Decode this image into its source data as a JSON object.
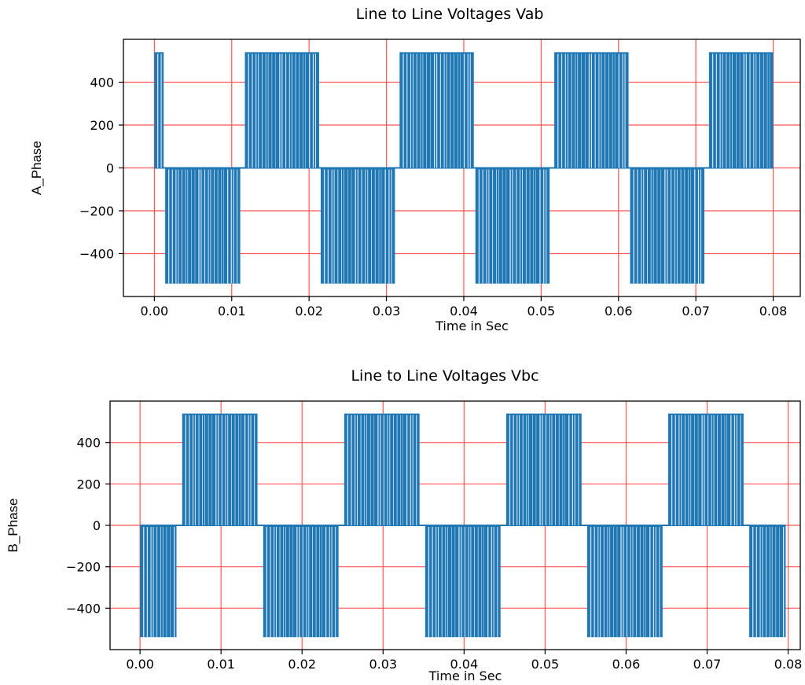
{
  "chart_data": [
    {
      "type": "line",
      "title": "Line to Line Voltages Vab",
      "xlabel": "Time in Sec",
      "ylabel": "A_Phase",
      "xlim": [
        -0.004,
        0.0835
      ],
      "ylim": [
        -600,
        600
      ],
      "xticks": [
        0.0,
        0.01,
        0.02,
        0.03,
        0.04,
        0.05,
        0.06,
        0.07,
        0.08
      ],
      "xtick_labels": [
        "0.00",
        "0.01",
        "0.02",
        "0.03",
        "0.04",
        "0.05",
        "0.06",
        "0.07",
        "0.08"
      ],
      "yticks": [
        -400,
        -200,
        0,
        200,
        400
      ],
      "ytick_labels": [
        "−400",
        "−200",
        "0",
        "200",
        "400"
      ],
      "grid": true,
      "grid_color": "#ff5555",
      "line_color": "#1f77b4",
      "series": [
        {
          "amplitude": 540,
          "pulses": [
            {
              "start": 0.0,
              "end": 0.0012,
              "level": 540
            },
            {
              "start": 0.0014,
              "end": 0.0111,
              "level": -540
            },
            {
              "start": 0.0117,
              "end": 0.0213,
              "level": 540
            },
            {
              "start": 0.0215,
              "end": 0.0311,
              "level": -540
            },
            {
              "start": 0.0317,
              "end": 0.0413,
              "level": 540
            },
            {
              "start": 0.0415,
              "end": 0.0511,
              "level": -540
            },
            {
              "start": 0.0517,
              "end": 0.0613,
              "level": 540
            },
            {
              "start": 0.0615,
              "end": 0.0711,
              "level": -540
            },
            {
              "start": 0.0717,
              "end": 0.08,
              "level": 540
            }
          ]
        }
      ]
    },
    {
      "type": "line",
      "title": "Line to Line Voltages Vbc",
      "xlabel": "Time in Sec",
      "ylabel": "B_Phase",
      "xlim": [
        -0.0037,
        0.0815
      ],
      "ylim": [
        -600,
        600
      ],
      "xticks": [
        0.0,
        0.01,
        0.02,
        0.03,
        0.04,
        0.05,
        0.06,
        0.07,
        0.08
      ],
      "xtick_labels": [
        "0.00",
        "0.01",
        "0.02",
        "0.03",
        "0.04",
        "0.05",
        "0.06",
        "0.07",
        "0.08"
      ],
      "yticks": [
        -400,
        -200,
        0,
        200,
        400
      ],
      "ytick_labels": [
        "−400",
        "−200",
        "0",
        "200",
        "400"
      ],
      "grid": true,
      "grid_color": "#ff5555",
      "line_color": "#1f77b4",
      "series": [
        {
          "amplitude": 540,
          "pulses": [
            {
              "start": 0.0,
              "end": 0.0045,
              "level": -540
            },
            {
              "start": 0.0052,
              "end": 0.0145,
              "level": 540
            },
            {
              "start": 0.0152,
              "end": 0.0245,
              "level": -540
            },
            {
              "start": 0.0252,
              "end": 0.0345,
              "level": 540
            },
            {
              "start": 0.0352,
              "end": 0.0445,
              "level": -540
            },
            {
              "start": 0.0452,
              "end": 0.0545,
              "level": 540
            },
            {
              "start": 0.0552,
              "end": 0.0645,
              "level": -540
            },
            {
              "start": 0.0652,
              "end": 0.0745,
              "level": 540
            },
            {
              "start": 0.0752,
              "end": 0.0797,
              "level": -540
            }
          ]
        }
      ]
    }
  ]
}
